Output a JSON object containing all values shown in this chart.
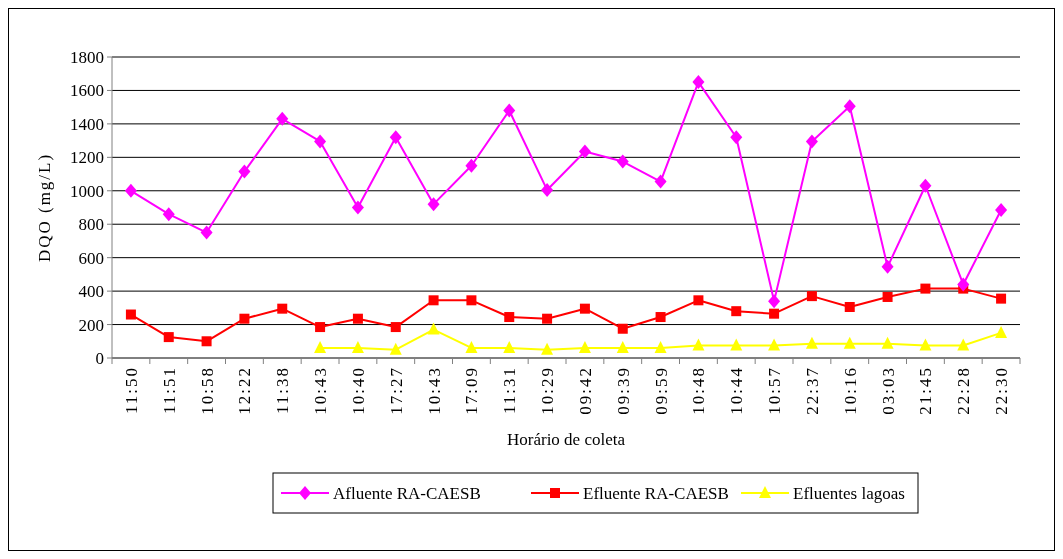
{
  "chart_data": {
    "type": "line",
    "xlabel": "Horário de coleta",
    "ylabel": "DQO (mg/L)",
    "categories": [
      "11:50",
      "11:51",
      "10:58",
      "12:22",
      "11:38",
      "10:43",
      "10:40",
      "17:27",
      "10:43",
      "17:09",
      "11:31",
      "10:29",
      "09:42",
      "09:39",
      "09:59",
      "10:48",
      "10:44",
      "10:57",
      "22:37",
      "10:16",
      "03:03",
      "21:45",
      "22:28",
      "22:30"
    ],
    "series": [
      {
        "name": "Afluente RA-CAESB",
        "color": "#ff00ff",
        "marker": "diamond",
        "values": [
          1000,
          860,
          750,
          1115,
          1430,
          1295,
          900,
          1320,
          920,
          1150,
          1480,
          1005,
          1235,
          1175,
          1055,
          1650,
          1320,
          340,
          1295,
          1505,
          545,
          1030,
          440,
          885
        ]
      },
      {
        "name": "Efluente RA-CAESB",
        "color": "#ff0000",
        "marker": "square",
        "values": [
          260,
          125,
          100,
          235,
          295,
          185,
          235,
          185,
          345,
          345,
          245,
          235,
          295,
          175,
          245,
          345,
          280,
          265,
          370,
          305,
          365,
          415,
          415,
          355
        ]
      },
      {
        "name": "Efluentes lagoas",
        "color": "#ffff00",
        "marker": "triangle",
        "values": [
          null,
          null,
          null,
          null,
          null,
          60,
          60,
          50,
          170,
          60,
          60,
          50,
          60,
          60,
          60,
          75,
          75,
          75,
          85,
          85,
          85,
          75,
          75,
          150
        ]
      }
    ],
    "ylim": [
      0,
      1800
    ],
    "yticks": [
      0,
      200,
      400,
      600,
      800,
      1000,
      1200,
      1400,
      1600,
      1800
    ],
    "grid": "y",
    "legend": "bottom",
    "line_style": "solid"
  }
}
